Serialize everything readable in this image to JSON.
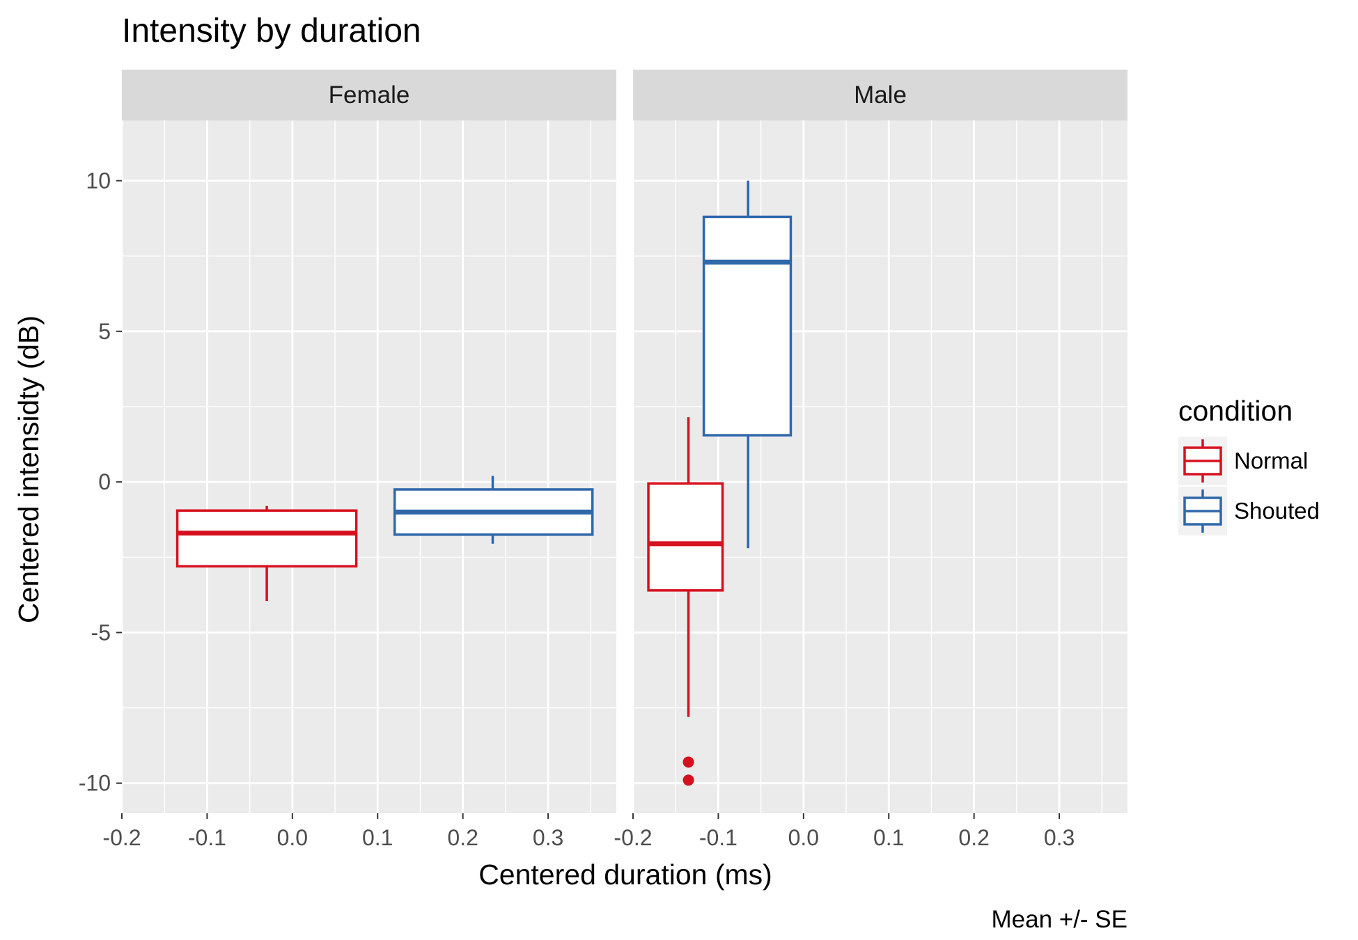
{
  "chart_data": {
    "type": "boxplot",
    "title": "Intensity by duration",
    "xlabel": "Centered duration (ms)",
    "ylabel": "Centered intensidty (dB)",
    "caption": "Mean +/- SE",
    "xlim": [
      -0.2,
      0.38
    ],
    "ylim": [
      -11,
      12
    ],
    "x_ticks": [
      -0.2,
      -0.1,
      0.0,
      0.1,
      0.2,
      0.3
    ],
    "x_tick_labels": [
      "-0.2",
      "-0.1",
      "0.0",
      "0.1",
      "0.2",
      "0.3"
    ],
    "y_ticks": [
      -10,
      -5,
      0,
      5,
      10
    ],
    "y_tick_labels": [
      "-10",
      "-5",
      "0",
      "5",
      "10"
    ],
    "grid": true,
    "legend": {
      "title": "condition",
      "position": "right",
      "entries": [
        {
          "label": "Normal",
          "color": "#d7101f"
        },
        {
          "label": "Shouted",
          "color": "#2f67aa"
        }
      ]
    },
    "panels": [
      {
        "label": "Female",
        "boxes": [
          {
            "condition": "Normal",
            "color": "#d7101f",
            "xmin": -0.135,
            "xmax": 0.075,
            "whisker_x": -0.03,
            "ymin": -3.95,
            "q1": -2.8,
            "median": -1.7,
            "q3": -0.95,
            "ymax": -0.8,
            "outliers": []
          },
          {
            "condition": "Shouted",
            "color": "#2f67aa",
            "xmin": 0.12,
            "xmax": 0.352,
            "whisker_x": 0.235,
            "ymin": -2.05,
            "q1": -1.75,
            "median": -1.0,
            "q3": -0.25,
            "ymax": 0.2,
            "outliers": []
          }
        ]
      },
      {
        "label": "Male",
        "boxes": [
          {
            "condition": "Normal",
            "color": "#d7101f",
            "xmin": -0.182,
            "xmax": -0.095,
            "whisker_x": -0.135,
            "ymin": -7.8,
            "q1": -3.6,
            "median": -2.05,
            "q3": -0.05,
            "ymax": 2.15,
            "outliers": [
              -9.3,
              -9.9
            ]
          },
          {
            "condition": "Shouted",
            "color": "#2f67aa",
            "xmin": -0.117,
            "xmax": -0.015,
            "whisker_x": -0.065,
            "ymin": -2.2,
            "q1": 1.55,
            "median": 7.3,
            "q3": 8.8,
            "ymax": 10.0,
            "outliers": []
          }
        ]
      }
    ]
  }
}
